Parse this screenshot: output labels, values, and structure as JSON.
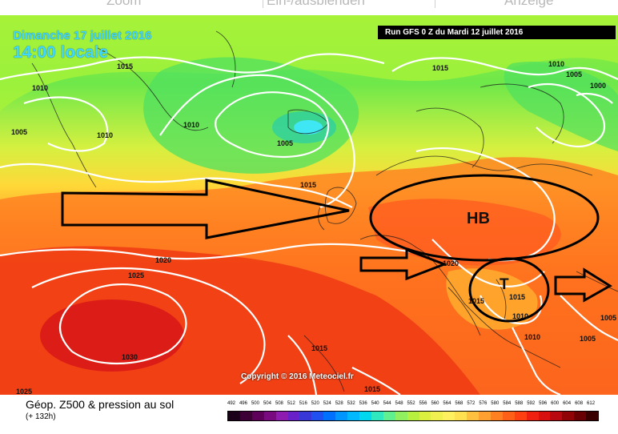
{
  "toolbar": {
    "items": [
      "Zoom",
      "Ein-/ausblenden",
      "Anzeige"
    ]
  },
  "map": {
    "date_line": "Dimanche 17 juillet 2016",
    "time_line": "14:00 locale",
    "run_info": "Run GFS 0 Z du Mardi 12 juillet 2016",
    "copyright": "Copyright © 2016 Meteociel.fr",
    "annotations": {
      "high_label": "HB",
      "low_label": "T"
    },
    "pressure_labels": [
      "1015",
      "1010",
      "1005",
      "1010",
      "1010",
      "1005",
      "1015",
      "1010",
      "1005",
      "1000",
      "1015",
      "1020",
      "1025",
      "1030",
      "1020",
      "1015",
      "1015",
      "1015",
      "1010",
      "1010",
      "1005",
      "1025",
      "1015",
      "1005"
    ]
  },
  "legend": {
    "title": "Géop. Z500 & pression au sol",
    "subtitle": "(+ 132h)",
    "scale_values": [
      "492",
      "496",
      "500",
      "504",
      "508",
      "512",
      "516",
      "520",
      "524",
      "528",
      "532",
      "536",
      "540",
      "544",
      "548",
      "552",
      "556",
      "560",
      "564",
      "568",
      "572",
      "576",
      "580",
      "584",
      "588",
      "592",
      "596",
      "600",
      "604",
      "608",
      "612"
    ],
    "scale_colors": [
      "#1a0018",
      "#3d0036",
      "#5e005a",
      "#7a0a80",
      "#8f1cb0",
      "#6a20c8",
      "#3838d8",
      "#2050f0",
      "#0070ff",
      "#0096ff",
      "#00b8ff",
      "#00d8f0",
      "#30e8c0",
      "#60f090",
      "#90f060",
      "#b8f040",
      "#dcf040",
      "#f0f050",
      "#fff060",
      "#ffe050",
      "#ffc040",
      "#ffa030",
      "#ff8020",
      "#ff6018",
      "#ff4010",
      "#f02010",
      "#d81010",
      "#b80810",
      "#900408",
      "#680004",
      "#3a0000"
    ]
  }
}
